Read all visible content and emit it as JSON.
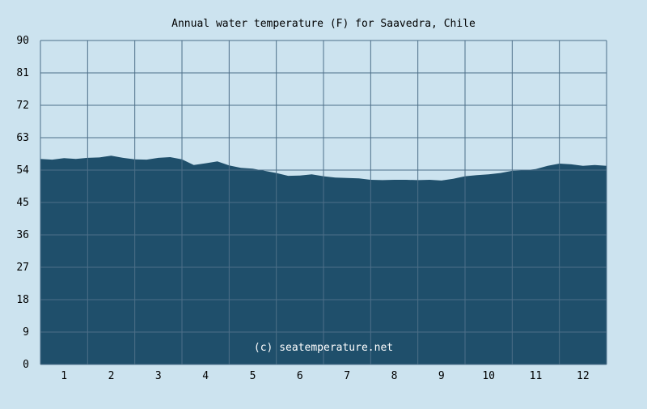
{
  "chart_data": {
    "type": "area",
    "title": "Annual water temperature (F) for Saavedra, Chile",
    "watermark": "(c) seatemperature.net",
    "xlabel": "",
    "ylabel": "",
    "y_ticks": [
      "0",
      "9",
      "18",
      "27",
      "36",
      "45",
      "54",
      "63",
      "72",
      "81",
      "90"
    ],
    "x_ticks": [
      "1",
      "2",
      "3",
      "4",
      "5",
      "6",
      "7",
      "8",
      "9",
      "10",
      "11",
      "12"
    ],
    "ylim": [
      0,
      90
    ],
    "xlim": [
      0.5,
      12.5
    ],
    "grid": true,
    "colors": {
      "background": "#cce3ef",
      "plot_background": "#cce3ef",
      "fill": "#1f4f6b",
      "grid": "#4d6f88",
      "text": "#000000"
    },
    "series": [
      {
        "x": [
          0.5,
          0.75,
          1.0,
          1.25,
          1.5,
          1.75,
          2.0,
          2.25,
          2.5,
          2.75,
          3.0,
          3.25,
          3.5,
          3.75,
          4.0,
          4.25,
          4.5,
          4.75,
          5.0,
          5.25,
          5.5,
          5.75,
          6.0,
          6.25,
          6.5,
          6.75,
          7.0,
          7.25,
          7.5,
          7.75,
          8.0,
          8.25,
          8.5,
          8.75,
          9.0,
          9.25,
          9.5,
          9.75,
          10.0,
          10.25,
          10.5,
          10.75,
          11.0,
          11.25,
          11.5,
          11.75,
          12.0,
          12.25,
          12.5
        ],
        "values": [
          57.1,
          56.9,
          57.3,
          57.1,
          57.4,
          57.5,
          58.0,
          57.4,
          57.0,
          56.9,
          57.4,
          57.6,
          57.0,
          55.4,
          55.9,
          56.4,
          55.3,
          54.6,
          54.4,
          53.8,
          53.2,
          52.4,
          52.5,
          52.8,
          52.3,
          51.9,
          51.8,
          51.7,
          51.3,
          51.2,
          51.3,
          51.3,
          51.2,
          51.3,
          51.1,
          51.6,
          52.3,
          52.6,
          52.8,
          53.2,
          53.8,
          53.9,
          54.3,
          55.2,
          55.8,
          55.6,
          55.2,
          55.4,
          55.2
        ]
      }
    ]
  }
}
